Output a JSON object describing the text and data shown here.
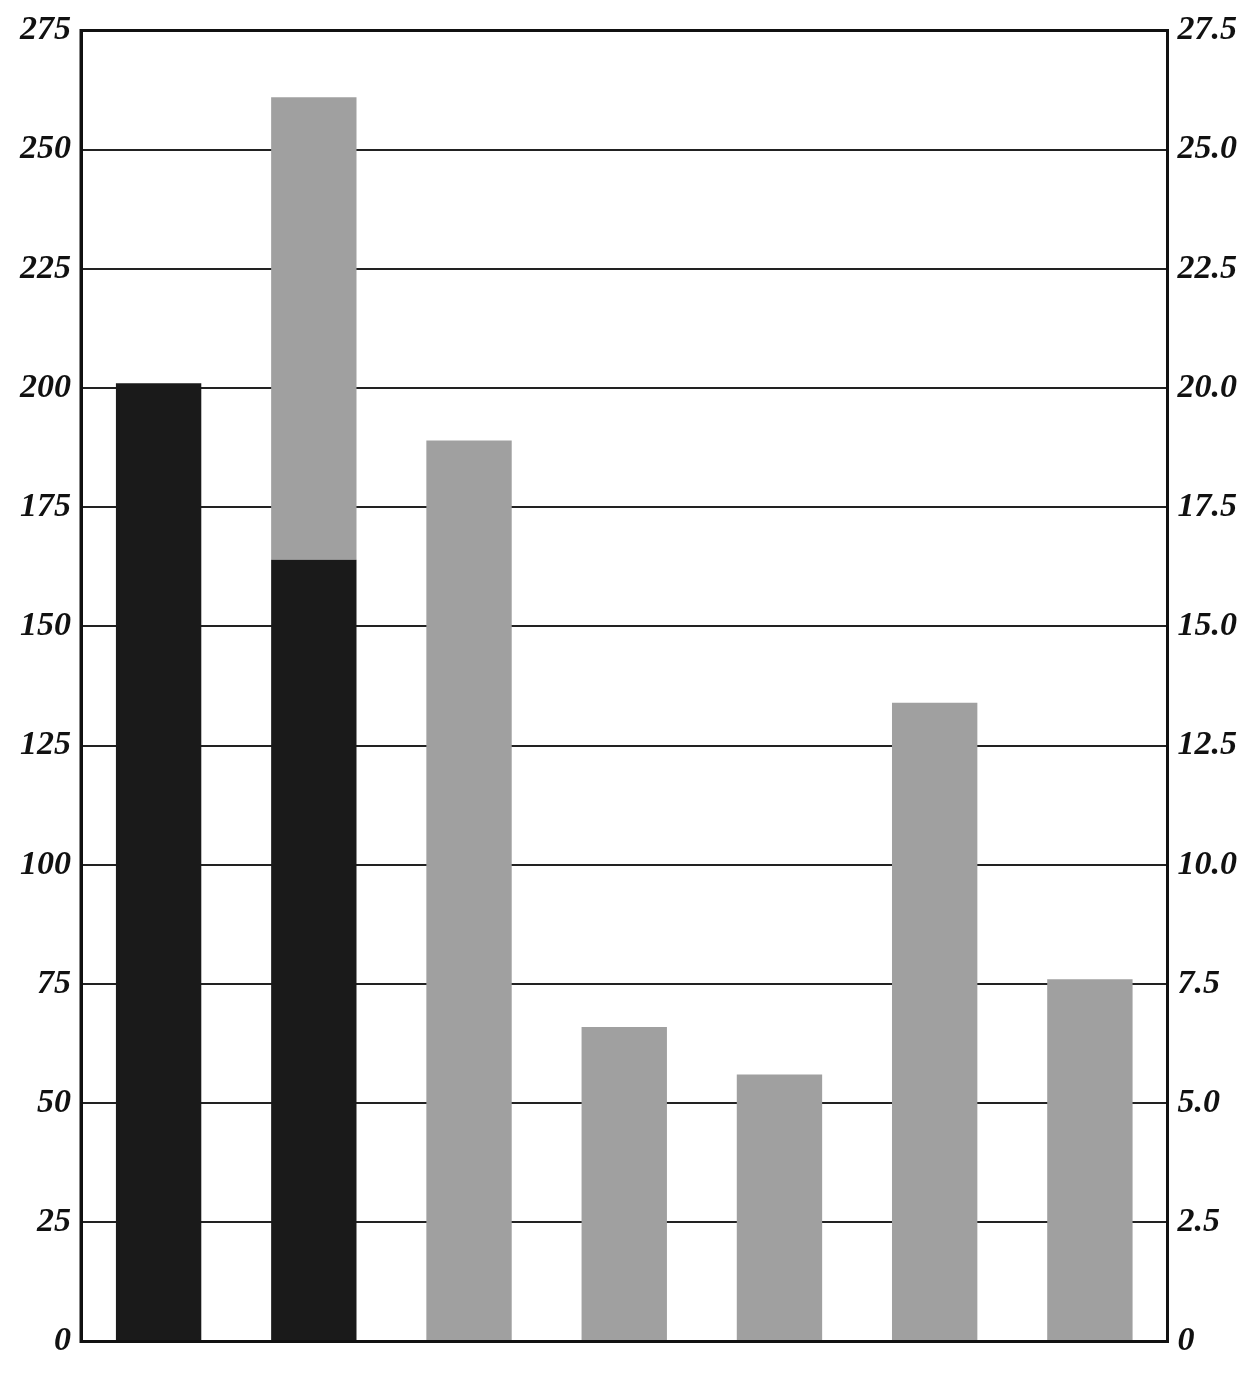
{
  "chart_data": {
    "type": "bar",
    "stacked": true,
    "categories": [
      null,
      null,
      null,
      null,
      null,
      null,
      null
    ],
    "series": [
      {
        "color": "#1a1a1a",
        "values": [
          201,
          164,
          null,
          null,
          null,
          null,
          null
        ]
      },
      {
        "color": "#a0a0a0",
        "values": [
          null,
          97,
          189,
          66,
          56,
          134,
          76
        ]
      }
    ],
    "ylim": [
      0,
      275
    ],
    "yticks": [
      0,
      25,
      50,
      75,
      100,
      125,
      150,
      175,
      200,
      225,
      250,
      275
    ],
    "y2lim": [
      0,
      27.5
    ],
    "y2ticks": [
      0,
      {
        "value": 2.5,
        "label": "2.5"
      },
      {
        "value": 5,
        "label": "5.0"
      },
      {
        "value": 7.5,
        "label": "7.5"
      },
      {
        "value": 10,
        "label": "10.0"
      },
      {
        "value": 12.5,
        "label": "12.5"
      },
      {
        "value": 15,
        "label": "15.0"
      },
      {
        "value": 17.5,
        "label": "17.5"
      },
      {
        "value": 20,
        "label": "20.0"
      },
      {
        "value": 22.5,
        "label": "22.5"
      },
      {
        "value": 25,
        "label": "25.0"
      },
      {
        "value": 27.5,
        "label": "27.5"
      }
    ],
    "grid": "y",
    "legend": false
  }
}
